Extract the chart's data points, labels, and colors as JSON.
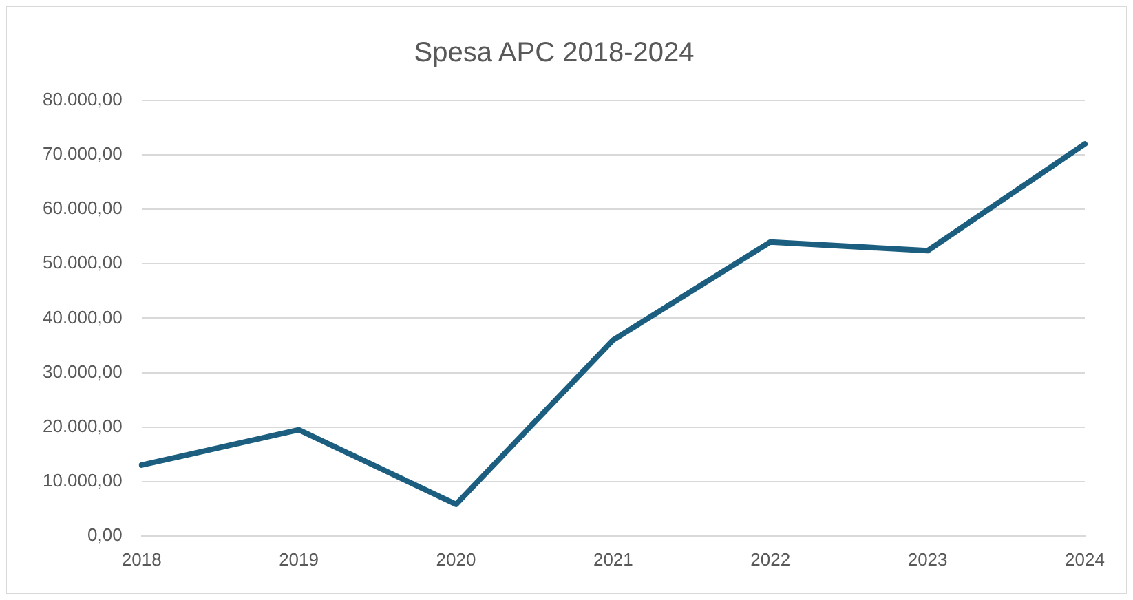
{
  "chart_data": {
    "type": "line",
    "title": "Spesa APC 2018-2024",
    "categories": [
      "2018",
      "2019",
      "2020",
      "2021",
      "2022",
      "2023",
      "2024"
    ],
    "series": [
      {
        "color": "#1b5e7f",
        "values": [
          13000,
          19500,
          5800,
          36000,
          54000,
          52400,
          72000
        ]
      }
    ],
    "ylim": [
      0,
      80000
    ],
    "yticks": [
      {
        "value": 0,
        "label": "0,00"
      },
      {
        "value": 10000,
        "label": "10.000,00"
      },
      {
        "value": 20000,
        "label": "20.000,00"
      },
      {
        "value": 30000,
        "label": "30.000,00"
      },
      {
        "value": 40000,
        "label": "40.000,00"
      },
      {
        "value": 50000,
        "label": "50.000,00"
      },
      {
        "value": 60000,
        "label": "60.000,00"
      },
      {
        "value": 70000,
        "label": "70.000,00"
      },
      {
        "value": 80000,
        "label": "80.000,00"
      }
    ],
    "grid": "y",
    "legend": false,
    "marker": "none",
    "line_style": "solid"
  }
}
